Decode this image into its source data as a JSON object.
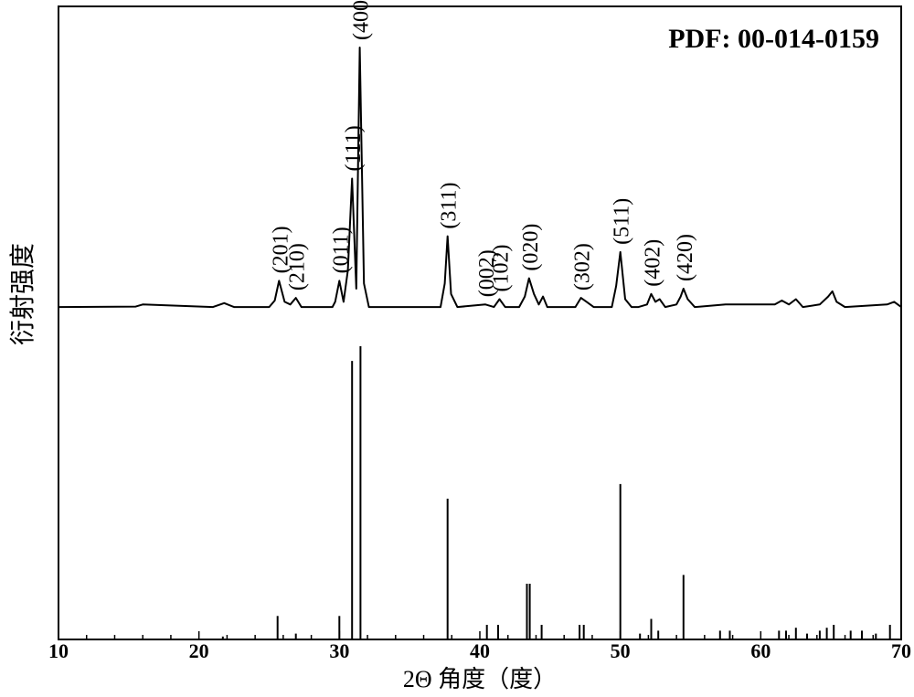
{
  "chart_data": [
    {
      "type": "line",
      "title": "PDF: 00-014-0159",
      "xlabel": "2Θ 角度（度）",
      "ylabel": "衍射强度",
      "xlim": [
        10,
        70
      ],
      "xticks": [
        10,
        20,
        30,
        40,
        50,
        60,
        70
      ],
      "grid": false,
      "series": [
        {
          "x": [
            10,
            15.5,
            16,
            21,
            21.8,
            22.5,
            25,
            25.4,
            25.7,
            26.1,
            26.5,
            26.9,
            27.3,
            29.5,
            29.7,
            30,
            30.3,
            30.6,
            30.9,
            31.2,
            31.45,
            31.75,
            32.1,
            33,
            37.2,
            37.5,
            37.7,
            37.95,
            38.4,
            40.4,
            41,
            41.4,
            41.8,
            42.8,
            43.2,
            43.5,
            43.85,
            44.2,
            44.5,
            44.8,
            46.8,
            47.2,
            47.6,
            48.1,
            49.4,
            49.7,
            50,
            50.35,
            50.8,
            51.3,
            51.9,
            52.2,
            52.5,
            52.8,
            53.2,
            54,
            54.3,
            54.5,
            54.8,
            55.3,
            57.5,
            61,
            61.5,
            62,
            62.5,
            63,
            64.2,
            64.8,
            65.1,
            65.4,
            66,
            69,
            69.5,
            70
          ],
          "y": [
            0.01,
            0.012,
            0.02,
            0.01,
            0.025,
            0.01,
            0.01,
            0.035,
            0.11,
            0.03,
            0.02,
            0.045,
            0.01,
            0.01,
            0.03,
            0.11,
            0.03,
            0.15,
            0.5,
            0.08,
            1.0,
            0.1,
            0.01,
            0.01,
            0.01,
            0.1,
            0.28,
            0.06,
            0.01,
            0.02,
            0.01,
            0.04,
            0.01,
            0.01,
            0.05,
            0.12,
            0.06,
            0.02,
            0.05,
            0.01,
            0.01,
            0.045,
            0.03,
            0.01,
            0.01,
            0.09,
            0.22,
            0.04,
            0.01,
            0.01,
            0.02,
            0.06,
            0.03,
            0.04,
            0.01,
            0.02,
            0.05,
            0.08,
            0.04,
            0.01,
            0.02,
            0.02,
            0.035,
            0.02,
            0.04,
            0.01,
            0.02,
            0.05,
            0.07,
            0.03,
            0.01,
            0.02,
            0.03,
            0.01
          ]
        }
      ],
      "annotations": [
        {
          "text": "(201)",
          "x": 25.7
        },
        {
          "text": "(210)",
          "x": 26.9
        },
        {
          "text": "(011)",
          "x": 30.0
        },
        {
          "text": "(111)",
          "x": 30.9
        },
        {
          "text": "(400)",
          "x": 31.45
        },
        {
          "text": "(311)",
          "x": 37.7
        },
        {
          "text": "(002)",
          "x": 40.4
        },
        {
          "text": "(102)",
          "x": 41.4
        },
        {
          "text": "(020)",
          "x": 43.5
        },
        {
          "text": "(302)",
          "x": 47.2
        },
        {
          "text": "(511)",
          "x": 50.0
        },
        {
          "text": "(402)",
          "x": 52.2
        },
        {
          "text": "(420)",
          "x": 54.5
        }
      ]
    },
    {
      "type": "bar",
      "xlim": [
        10,
        70
      ],
      "series": [
        {
          "x": [
            21.7,
            25.6,
            26.9,
            30.0,
            30.9,
            31.5,
            37.7,
            40.5,
            41.3,
            43.35,
            43.55,
            44.4,
            47.1,
            47.4,
            50.0,
            51.4,
            52.2,
            52.7,
            54.5,
            57.1,
            57.8,
            61.3,
            61.8,
            62.5,
            63.3,
            64.2,
            64.7,
            65.2,
            66.4,
            67.2,
            68.2,
            69.2
          ],
          "y": [
            0.01,
            0.08,
            0.02,
            0.08,
            0.95,
            1.0,
            0.48,
            0.05,
            0.05,
            0.19,
            0.19,
            0.05,
            0.05,
            0.05,
            0.53,
            0.02,
            0.07,
            0.03,
            0.22,
            0.03,
            0.03,
            0.03,
            0.03,
            0.04,
            0.02,
            0.03,
            0.04,
            0.05,
            0.03,
            0.03,
            0.02,
            0.05
          ]
        }
      ]
    }
  ]
}
